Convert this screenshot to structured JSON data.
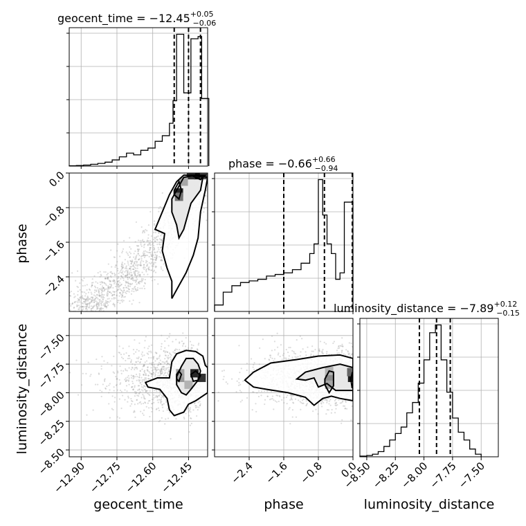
{
  "chart_data": {
    "type": "corner",
    "parameters": [
      "geocent_time",
      "phase",
      "luminosity_distance"
    ],
    "labels": {
      "geocent_time": "geocent_time",
      "phase": "phase",
      "luminosity_distance": "luminosity_distance"
    },
    "titles": [
      {
        "param": "geocent_time",
        "text": "geocent_time = −12.45",
        "sup": "+0.05",
        "sub": "−0.06"
      },
      {
        "param": "phase",
        "text": "phase = −0.66",
        "sup": "+0.66",
        "sub": "−0.94"
      },
      {
        "param": "luminosity_distance",
        "text": "luminosity_distance = −7.89",
        "sup": "+0.12",
        "sub": "−0.15"
      }
    ],
    "ranges": {
      "geocent_time": [
        -12.95,
        -12.37
      ],
      "phase": [
        -3.2,
        0.0
      ],
      "luminosity_distance": [
        -8.56,
        -7.35
      ]
    },
    "ticks": {
      "geocent_time": {
        "values": [
          -12.9,
          -12.75,
          -12.6,
          -12.45
        ],
        "labels": [
          "−12.90",
          "−12.75",
          "−12.60",
          "−12.45"
        ]
      },
      "phase_x": {
        "values": [
          -2.4,
          -1.6,
          -0.8,
          0.0
        ],
        "labels": [
          "−2.4",
          "−1.6",
          "−0.8",
          "0.0"
        ]
      },
      "phase_y": {
        "values": [
          0.0,
          -0.8,
          -1.6,
          -2.4
        ],
        "labels": [
          "0.0",
          "−0.8",
          "−1.6",
          "−2.4"
        ]
      },
      "luminosity_distance_x": {
        "values": [
          -8.5,
          -8.25,
          -8.0,
          -7.75,
          -7.5
        ],
        "labels": [
          "−8.50",
          "−8.25",
          "−8.00",
          "−7.75",
          "−7.50"
        ]
      },
      "luminosity_distance_y": {
        "values": [
          -7.5,
          -7.75,
          -8.0,
          -8.25,
          -8.5
        ],
        "labels": [
          "−7.50",
          "−7.75",
          "−8.00",
          "−8.25",
          "−8.50"
        ]
      }
    },
    "quantiles": {
      "geocent_time": [
        -12.51,
        -12.45,
        -12.4
      ],
      "phase": [
        -1.6,
        -0.66,
        0.0
      ],
      "luminosity_distance": [
        -8.04,
        -7.89,
        -7.77
      ]
    },
    "histograms": {
      "geocent_time": {
        "edges": [
          -12.95,
          -12.92,
          -12.89,
          -12.86,
          -12.83,
          -12.8,
          -12.77,
          -12.74,
          -12.71,
          -12.68,
          -12.65,
          -12.62,
          -12.59,
          -12.56,
          -12.53,
          -12.515,
          -12.5,
          -12.485,
          -12.47,
          -12.455,
          -12.44,
          -12.425,
          -12.41,
          -12.395,
          -12.38,
          -12.365
        ],
        "counts": [
          0.3,
          0.5,
          0.9,
          1.6,
          2.4,
          3.5,
          5.5,
          8.2,
          11.5,
          10.0,
          14.0,
          16.0,
          22.0,
          27.0,
          38.0,
          58.0,
          117.0,
          117.0,
          65.0,
          65.0,
          113.0,
          113.0,
          115.0,
          60.0,
          60.0
        ]
      },
      "phase": {
        "edges": [
          -3.2,
          -3.0,
          -2.8,
          -2.6,
          -2.4,
          -2.2,
          -2.0,
          -1.8,
          -1.6,
          -1.4,
          -1.2,
          -1.0,
          -0.9,
          -0.8,
          -0.7,
          -0.6,
          -0.5,
          -0.4,
          -0.3,
          -0.2,
          -0.1,
          0.0
        ],
        "counts": [
          2,
          6,
          8,
          9,
          9.5,
          10,
          11,
          11.5,
          12,
          13,
          15,
          18,
          21,
          41,
          30,
          21,
          18,
          10,
          12,
          34,
          34
        ]
      },
      "luminosity_distance": {
        "edges": [
          -8.56,
          -8.5,
          -8.45,
          -8.4,
          -8.35,
          -8.3,
          -8.25,
          -8.2,
          -8.15,
          -8.1,
          -8.05,
          -8.0,
          -7.95,
          -7.9,
          -7.85,
          -7.8,
          -7.75,
          -7.7,
          -7.65,
          -7.6,
          -7.55,
          -7.5
        ],
        "counts": [
          0.5,
          1,
          2,
          4,
          8,
          13,
          18,
          23,
          34,
          42,
          57,
          75,
          96,
          102,
          75,
          50,
          30,
          19,
          13,
          6,
          2
        ]
      }
    },
    "contours_2d": {
      "phase_vs_geocent_time": [
        [
          [
            -12.52,
            -2.9
          ],
          [
            -12.49,
            -2.6
          ],
          [
            -12.46,
            -2.3
          ],
          [
            -12.43,
            -1.9
          ],
          [
            -12.41,
            -1.5
          ],
          [
            -12.4,
            -0.9
          ],
          [
            -12.38,
            -0.4
          ],
          [
            -12.37,
            -0.1
          ],
          [
            -12.42,
            -0.05
          ],
          [
            -12.47,
            -0.05
          ],
          [
            -12.5,
            -0.2
          ],
          [
            -12.53,
            -0.5
          ],
          [
            -12.56,
            -0.9
          ],
          [
            -12.59,
            -1.3
          ],
          [
            -12.55,
            -1.4
          ],
          [
            -12.56,
            -1.8
          ],
          [
            -12.54,
            -2.2
          ],
          [
            -12.52,
            -2.5
          ],
          [
            -12.52,
            -2.9
          ]
        ],
        [
          [
            -12.49,
            -1.5
          ],
          [
            -12.47,
            -1.3
          ],
          [
            -12.45,
            -0.9
          ],
          [
            -12.44,
            -0.7
          ],
          [
            -12.4,
            -0.4
          ],
          [
            -12.39,
            -0.1
          ],
          [
            -12.42,
            -0.05
          ],
          [
            -12.47,
            -0.1
          ],
          [
            -12.5,
            -0.4
          ],
          [
            -12.52,
            -0.6
          ],
          [
            -12.52,
            -0.9
          ],
          [
            -12.5,
            -1.2
          ],
          [
            -12.49,
            -1.5
          ]
        ],
        [
          [
            -12.49,
            -0.6
          ],
          [
            -12.48,
            -0.4
          ],
          [
            -12.49,
            -0.2
          ],
          [
            -12.51,
            -0.4
          ],
          [
            -12.51,
            -0.5
          ],
          [
            -12.49,
            -0.6
          ]
        ],
        [
          [
            -12.44,
            -0.05
          ],
          [
            -12.42,
            -0.1
          ],
          [
            -12.4,
            -0.15
          ],
          [
            -12.38,
            -0.05
          ],
          [
            -12.44,
            -0.05
          ]
        ]
      ],
      "luminosity_distance_vs_geocent_time": [
        [
          [
            -12.63,
            -7.91
          ],
          [
            -12.58,
            -7.87
          ],
          [
            -12.53,
            -7.87
          ],
          [
            -12.52,
            -7.73
          ],
          [
            -12.5,
            -7.66
          ],
          [
            -12.46,
            -7.63
          ],
          [
            -12.42,
            -7.64
          ],
          [
            -12.39,
            -7.68
          ],
          [
            -12.38,
            -7.76
          ],
          [
            -12.37,
            -7.78
          ],
          [
            -12.37,
            -8.0
          ],
          [
            -12.42,
            -8.07
          ],
          [
            -12.45,
            -8.1
          ],
          [
            -12.47,
            -8.17
          ],
          [
            -12.51,
            -8.2
          ],
          [
            -12.53,
            -8.15
          ],
          [
            -12.54,
            -8.05
          ],
          [
            -12.57,
            -7.97
          ],
          [
            -12.62,
            -7.95
          ],
          [
            -12.63,
            -7.91
          ]
        ],
        [
          [
            -12.5,
            -7.86
          ],
          [
            -12.48,
            -7.77
          ],
          [
            -12.46,
            -7.7
          ],
          [
            -12.43,
            -7.7
          ],
          [
            -12.41,
            -7.75
          ],
          [
            -12.4,
            -7.81
          ],
          [
            -12.41,
            -7.89
          ],
          [
            -12.44,
            -7.97
          ],
          [
            -12.46,
            -8.02
          ],
          [
            -12.48,
            -8.0
          ],
          [
            -12.5,
            -7.93
          ],
          [
            -12.5,
            -7.86
          ]
        ],
        [
          [
            -12.49,
            -7.9
          ],
          [
            -12.48,
            -7.84
          ],
          [
            -12.49,
            -7.81
          ],
          [
            -12.5,
            -7.84
          ],
          [
            -12.5,
            -7.88
          ],
          [
            -12.49,
            -7.9
          ]
        ],
        [
          [
            -12.44,
            -7.84
          ],
          [
            -12.42,
            -7.81
          ],
          [
            -12.4,
            -7.85
          ],
          [
            -12.41,
            -7.89
          ],
          [
            -12.43,
            -7.9
          ],
          [
            -12.44,
            -7.84
          ]
        ]
      ],
      "luminosity_distance_vs_phase": [
        [
          [
            -2.5,
            -7.89
          ],
          [
            -2.3,
            -7.82
          ],
          [
            -1.9,
            -7.74
          ],
          [
            -1.3,
            -7.71
          ],
          [
            -0.8,
            -7.68
          ],
          [
            -0.3,
            -7.67
          ],
          [
            0.0,
            -7.7
          ],
          [
            0.0,
            -8.07
          ],
          [
            -0.3,
            -8.05
          ],
          [
            -0.5,
            -8.03
          ],
          [
            -0.7,
            -8.05
          ],
          [
            -0.9,
            -8.11
          ],
          [
            -1.1,
            -8.04
          ],
          [
            -1.5,
            -8.0
          ],
          [
            -2.0,
            -7.97
          ],
          [
            -2.3,
            -7.95
          ],
          [
            -2.5,
            -7.89
          ]
        ],
        [
          [
            -1.3,
            -7.88
          ],
          [
            -1.1,
            -7.82
          ],
          [
            -0.7,
            -7.78
          ],
          [
            -0.3,
            -7.75
          ],
          [
            0.0,
            -7.78
          ],
          [
            0.0,
            -7.98
          ],
          [
            -0.4,
            -7.98
          ],
          [
            -0.6,
            -7.92
          ],
          [
            -0.8,
            -7.95
          ],
          [
            -0.9,
            -7.87
          ],
          [
            -1.1,
            -7.89
          ],
          [
            -1.3,
            -7.88
          ]
        ],
        [
          [
            -0.65,
            -7.88
          ],
          [
            -0.55,
            -7.81
          ],
          [
            -0.45,
            -7.82
          ],
          [
            -0.45,
            -7.94
          ],
          [
            -0.55,
            -8.0
          ],
          [
            -0.65,
            -7.93
          ],
          [
            -0.65,
            -7.88
          ]
        ],
        [
          [
            -0.05,
            -7.88
          ],
          [
            -0.02,
            -7.83
          ],
          [
            0.0,
            -7.84
          ],
          [
            0.0,
            -7.94
          ],
          [
            -0.02,
            -7.96
          ],
          [
            -0.05,
            -7.88
          ]
        ]
      ]
    },
    "density_peaks": {
      "phase_vs_geocent_time": [
        {
          "x": -12.41,
          "y": -0.05,
          "level": 0.95
        },
        {
          "x": -12.44,
          "y": -0.05,
          "level": 0.8
        },
        {
          "x": -12.385,
          "y": -0.05,
          "level": 0.7
        },
        {
          "x": -12.49,
          "y": -0.45,
          "level": 0.85
        },
        {
          "x": -12.49,
          "y": -0.55,
          "level": 0.55
        },
        {
          "x": -12.47,
          "y": -0.2,
          "level": 0.35
        }
      ],
      "luminosity_distance_vs_geocent_time": [
        {
          "x": -12.425,
          "y": -7.83,
          "level": 0.85
        },
        {
          "x": -12.395,
          "y": -7.87,
          "level": 0.8
        },
        {
          "x": -12.485,
          "y": -7.87,
          "level": 0.4
        },
        {
          "x": -12.485,
          "y": -7.83,
          "level": 0.35
        },
        {
          "x": -12.45,
          "y": -7.93,
          "level": 0.3
        }
      ],
      "luminosity_distance_vs_phase": [
        {
          "x": -0.02,
          "y": -7.87,
          "level": 0.9
        },
        {
          "x": -0.04,
          "y": -7.82,
          "level": 0.6
        },
        {
          "x": -0.55,
          "y": -7.87,
          "level": 0.45
        },
        {
          "x": -0.55,
          "y": -7.93,
          "level": 0.35
        },
        {
          "x": -0.55,
          "y": -7.81,
          "level": 0.3
        }
      ]
    },
    "colors": {
      "contour": "#000000",
      "scatter": "#9a9a9a",
      "grid": "#b0b0b0"
    },
    "grid": true
  }
}
